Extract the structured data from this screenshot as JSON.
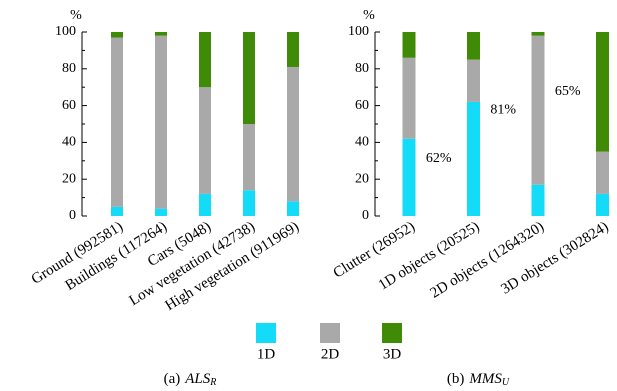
{
  "chart_data": [
    {
      "type": "bar",
      "stacked": true,
      "subtitle": {
        "label": "(a)",
        "name": "ALS",
        "subscript": "R"
      },
      "ylabel": "%",
      "categories": [
        "Ground (992581)",
        "Buildings (117264)",
        "Cars (5048)",
        "Low vegetation (42738)",
        "High vegetation (911969)"
      ],
      "series": [
        {
          "name": "1D",
          "color": "#14dcf8",
          "values": [
            5,
            4,
            12,
            14,
            8
          ]
        },
        {
          "name": "2D",
          "color": "#a9a9a9",
          "values": [
            92,
            94,
            58,
            36,
            73
          ]
        },
        {
          "name": "3D",
          "color": "#3f8a07",
          "values": [
            3,
            2,
            30,
            50,
            19
          ]
        }
      ],
      "ylim": [
        0,
        100
      ],
      "yticks": [
        0,
        20,
        40,
        60,
        80,
        100
      ],
      "yminorticks": [
        10,
        30,
        50,
        70,
        90
      ]
    },
    {
      "type": "bar",
      "stacked": true,
      "subtitle": {
        "label": "(b)",
        "name": "MMS",
        "subscript": "U"
      },
      "ylabel": "%",
      "categories": [
        "Clutter (26952)",
        "1D objects (20525)",
        "2D objects (1264320)",
        "3D objects (302824)"
      ],
      "series": [
        {
          "name": "1D",
          "color": "#14dcf8",
          "values": [
            42,
            62,
            17,
            12
          ],
          "value_labels": [
            null,
            "62%",
            null,
            null
          ]
        },
        {
          "name": "2D",
          "color": "#a9a9a9",
          "values": [
            44,
            23,
            81,
            23
          ],
          "value_labels": [
            null,
            null,
            "81%",
            null
          ]
        },
        {
          "name": "3D",
          "color": "#3f8a07",
          "values": [
            14,
            15,
            2,
            65
          ],
          "value_labels": [
            null,
            null,
            null,
            "65%"
          ]
        }
      ],
      "ylim": [
        0,
        100
      ],
      "yticks": [
        0,
        20,
        40,
        60,
        80,
        100
      ],
      "yminorticks": [
        10,
        30,
        50,
        70,
        90
      ]
    }
  ]
}
